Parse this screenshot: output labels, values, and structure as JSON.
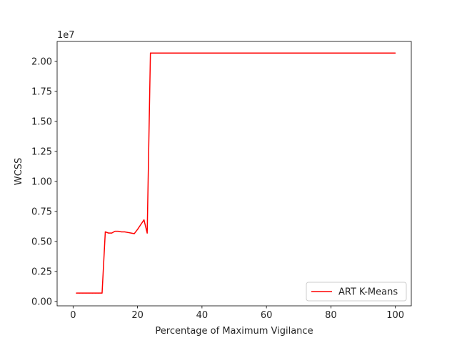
{
  "chart_data": {
    "type": "line",
    "title": "",
    "xlabel": "Percentage of Maximum Vigilance",
    "ylabel": "WCSS",
    "y_offset_label": "1e7",
    "xlim": [
      -4.95,
      104.95
    ],
    "ylim": [
      -0.0365,
      2.1665
    ],
    "x_ticks": [
      0,
      20,
      40,
      60,
      80,
      100
    ],
    "x_tick_labels": [
      "0",
      "20",
      "40",
      "60",
      "80",
      "100"
    ],
    "y_ticks": [
      0.0,
      0.25,
      0.5,
      0.75,
      1.0,
      1.25,
      1.5,
      1.75,
      2.0
    ],
    "y_tick_labels": [
      "0.00",
      "0.25",
      "0.50",
      "0.75",
      "1.00",
      "1.25",
      "1.50",
      "1.75",
      "2.00"
    ],
    "grid": false,
    "legend": {
      "position": "lower-right",
      "entries": [
        "ART K-Means"
      ]
    },
    "series": [
      {
        "name": "ART K-Means",
        "color": "#ff0000",
        "x": [
          1,
          2,
          3,
          4,
          5,
          6,
          7,
          8,
          9,
          10,
          11,
          12,
          13,
          14,
          15,
          16,
          17,
          18,
          19,
          20,
          21,
          22,
          23,
          24,
          25,
          30,
          40,
          50,
          60,
          70,
          80,
          90,
          100
        ],
        "y": [
          0.07,
          0.07,
          0.07,
          0.07,
          0.07,
          0.07,
          0.07,
          0.07,
          0.07,
          0.58,
          0.57,
          0.57,
          0.585,
          0.585,
          0.58,
          0.58,
          0.575,
          0.57,
          0.565,
          0.6,
          0.64,
          0.68,
          0.57,
          2.07,
          2.07,
          2.07,
          2.07,
          2.07,
          2.07,
          2.07,
          2.07,
          2.07,
          2.07
        ]
      }
    ]
  }
}
